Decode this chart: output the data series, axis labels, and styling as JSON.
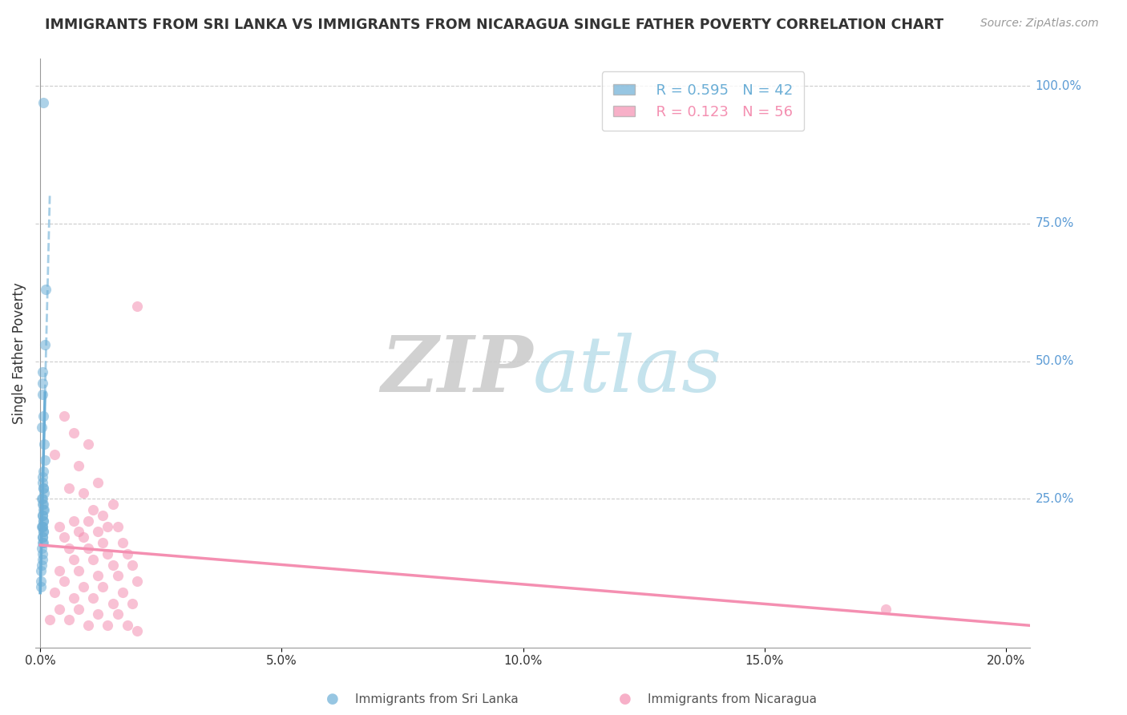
{
  "title": "IMMIGRANTS FROM SRI LANKA VS IMMIGRANTS FROM NICARAGUA SINGLE FATHER POVERTY CORRELATION CHART",
  "source": "Source: ZipAtlas.com",
  "ylabel": "Single Father Poverty",
  "sri_lanka_color": "#6baed6",
  "nicaragua_color": "#f48fb1",
  "sri_lanka_R": 0.595,
  "sri_lanka_N": 42,
  "nicaragua_R": 0.123,
  "nicaragua_N": 56,
  "xlim": [
    -0.001,
    0.205
  ],
  "ylim": [
    -0.02,
    1.05
  ],
  "background_color": "#ffffff",
  "sri_lanka_points": [
    [
      0.0007,
      0.97
    ],
    [
      0.0012,
      0.63
    ],
    [
      0.001,
      0.53
    ],
    [
      0.0005,
      0.48
    ],
    [
      0.0004,
      0.46
    ],
    [
      0.0005,
      0.44
    ],
    [
      0.0006,
      0.4
    ],
    [
      0.0003,
      0.38
    ],
    [
      0.0008,
      0.35
    ],
    [
      0.0009,
      0.32
    ],
    [
      0.0007,
      0.3
    ],
    [
      0.0004,
      0.29
    ],
    [
      0.0005,
      0.28
    ],
    [
      0.0006,
      0.27
    ],
    [
      0.0007,
      0.27
    ],
    [
      0.0008,
      0.26
    ],
    [
      0.0003,
      0.25
    ],
    [
      0.0004,
      0.25
    ],
    [
      0.0005,
      0.24
    ],
    [
      0.0006,
      0.24
    ],
    [
      0.0007,
      0.23
    ],
    [
      0.0008,
      0.23
    ],
    [
      0.0004,
      0.22
    ],
    [
      0.0005,
      0.22
    ],
    [
      0.0006,
      0.21
    ],
    [
      0.0007,
      0.21
    ],
    [
      0.0003,
      0.2
    ],
    [
      0.0004,
      0.2
    ],
    [
      0.0005,
      0.2
    ],
    [
      0.0006,
      0.19
    ],
    [
      0.0007,
      0.19
    ],
    [
      0.0004,
      0.18
    ],
    [
      0.0005,
      0.18
    ],
    [
      0.0006,
      0.17
    ],
    [
      0.0004,
      0.17
    ],
    [
      0.0003,
      0.16
    ],
    [
      0.0005,
      0.15
    ],
    [
      0.0004,
      0.14
    ],
    [
      0.0003,
      0.13
    ],
    [
      0.0002,
      0.12
    ],
    [
      0.0002,
      0.1
    ],
    [
      0.0001,
      0.09
    ]
  ],
  "nicaragua_points": [
    [
      0.02,
      0.6
    ],
    [
      0.005,
      0.4
    ],
    [
      0.007,
      0.37
    ],
    [
      0.01,
      0.35
    ],
    [
      0.003,
      0.33
    ],
    [
      0.008,
      0.31
    ],
    [
      0.012,
      0.28
    ],
    [
      0.006,
      0.27
    ],
    [
      0.009,
      0.26
    ],
    [
      0.015,
      0.24
    ],
    [
      0.011,
      0.23
    ],
    [
      0.013,
      0.22
    ],
    [
      0.01,
      0.21
    ],
    [
      0.007,
      0.21
    ],
    [
      0.014,
      0.2
    ],
    [
      0.016,
      0.2
    ],
    [
      0.004,
      0.2
    ],
    [
      0.008,
      0.19
    ],
    [
      0.012,
      0.19
    ],
    [
      0.005,
      0.18
    ],
    [
      0.009,
      0.18
    ],
    [
      0.013,
      0.17
    ],
    [
      0.017,
      0.17
    ],
    [
      0.006,
      0.16
    ],
    [
      0.01,
      0.16
    ],
    [
      0.014,
      0.15
    ],
    [
      0.018,
      0.15
    ],
    [
      0.007,
      0.14
    ],
    [
      0.011,
      0.14
    ],
    [
      0.015,
      0.13
    ],
    [
      0.019,
      0.13
    ],
    [
      0.004,
      0.12
    ],
    [
      0.008,
      0.12
    ],
    [
      0.012,
      0.11
    ],
    [
      0.016,
      0.11
    ],
    [
      0.02,
      0.1
    ],
    [
      0.005,
      0.1
    ],
    [
      0.009,
      0.09
    ],
    [
      0.013,
      0.09
    ],
    [
      0.017,
      0.08
    ],
    [
      0.003,
      0.08
    ],
    [
      0.007,
      0.07
    ],
    [
      0.011,
      0.07
    ],
    [
      0.015,
      0.06
    ],
    [
      0.019,
      0.06
    ],
    [
      0.004,
      0.05
    ],
    [
      0.008,
      0.05
    ],
    [
      0.012,
      0.04
    ],
    [
      0.016,
      0.04
    ],
    [
      0.002,
      0.03
    ],
    [
      0.006,
      0.03
    ],
    [
      0.01,
      0.02
    ],
    [
      0.014,
      0.02
    ],
    [
      0.018,
      0.02
    ],
    [
      0.175,
      0.05
    ],
    [
      0.02,
      0.01
    ]
  ]
}
